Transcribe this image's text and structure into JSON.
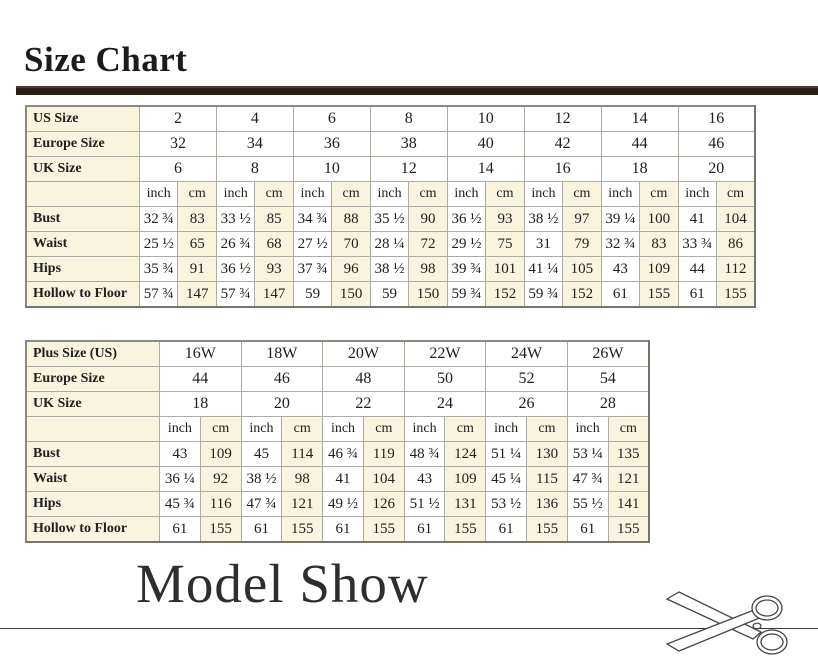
{
  "page": {
    "title": "Size Chart",
    "model_show_title": "Model Show",
    "colors": {
      "accent_bar": "#281c15",
      "cream_cell": "#f8f4dd",
      "table_border": "#adaca2",
      "text": "#202020"
    },
    "icons": {
      "scissors": "scissors-icon"
    }
  },
  "size_table": {
    "size_rows": [
      {
        "label": "US Size",
        "values": [
          "2",
          "4",
          "6",
          "8",
          "10",
          "12",
          "14",
          "16"
        ]
      },
      {
        "label": "Europe Size",
        "values": [
          "32",
          "34",
          "36",
          "38",
          "40",
          "42",
          "44",
          "46"
        ]
      },
      {
        "label": "UK Size",
        "values": [
          "6",
          "8",
          "10",
          "12",
          "14",
          "16",
          "18",
          "20"
        ]
      }
    ],
    "unit_labels": [
      "inch",
      "cm"
    ],
    "measure_rows": [
      {
        "label": "Bust",
        "inch": [
          "32 ¾",
          "33 ½",
          "34 ¾",
          "35 ½",
          "36 ½",
          "38 ½",
          "39 ¼",
          "41"
        ],
        "cm": [
          "83",
          "85",
          "88",
          "90",
          "93",
          "97",
          "100",
          "104"
        ]
      },
      {
        "label": "Waist",
        "inch": [
          "25 ½",
          "26 ¾",
          "27 ½",
          "28 ¼",
          "29 ½",
          "31",
          "32 ¾",
          "33 ¾"
        ],
        "cm": [
          "65",
          "68",
          "70",
          "72",
          "75",
          "79",
          "83",
          "86"
        ]
      },
      {
        "label": "Hips",
        "inch": [
          "35 ¾",
          "36 ½",
          "37 ¾",
          "38 ½",
          "39 ¾",
          "41 ¼",
          "43",
          "44"
        ],
        "cm": [
          "91",
          "93",
          "96",
          "98",
          "101",
          "105",
          "109",
          "112"
        ]
      },
      {
        "label": "Hollow to Floor",
        "inch": [
          "57 ¾",
          "57 ¾",
          "59",
          "59",
          "59 ¾",
          "59 ¾",
          "61",
          "61"
        ],
        "cm": [
          "147",
          "147",
          "150",
          "150",
          "152",
          "152",
          "155",
          "155"
        ]
      }
    ]
  },
  "plus_size_table": {
    "size_rows": [
      {
        "label": "Plus Size (US)",
        "values": [
          "16W",
          "18W",
          "20W",
          "22W",
          "24W",
          "26W"
        ]
      },
      {
        "label": "Europe Size",
        "values": [
          "44",
          "46",
          "48",
          "50",
          "52",
          "54"
        ]
      },
      {
        "label": "UK Size",
        "values": [
          "18",
          "20",
          "22",
          "24",
          "26",
          "28"
        ]
      }
    ],
    "unit_labels": [
      "inch",
      "cm"
    ],
    "measure_rows": [
      {
        "label": "Bust",
        "inch": [
          "43",
          "45",
          "46 ¾",
          "48 ¾",
          "51 ¼",
          "53 ¼"
        ],
        "cm": [
          "109",
          "114",
          "119",
          "124",
          "130",
          "135"
        ]
      },
      {
        "label": "Waist",
        "inch": [
          "36 ¼",
          "38 ½",
          "41",
          "43",
          "45 ¼",
          "47 ¾"
        ],
        "cm": [
          "92",
          "98",
          "104",
          "109",
          "115",
          "121"
        ]
      },
      {
        "label": "Hips",
        "inch": [
          "45 ¾",
          "47 ¾",
          "49 ½",
          "51 ½",
          "53 ½",
          "55 ½"
        ],
        "cm": [
          "116",
          "121",
          "126",
          "131",
          "136",
          "141"
        ]
      },
      {
        "label": "Hollow to Floor",
        "inch": [
          "61",
          "61",
          "61",
          "61",
          "61",
          "61"
        ],
        "cm": [
          "155",
          "155",
          "155",
          "155",
          "155",
          "155"
        ]
      }
    ]
  }
}
